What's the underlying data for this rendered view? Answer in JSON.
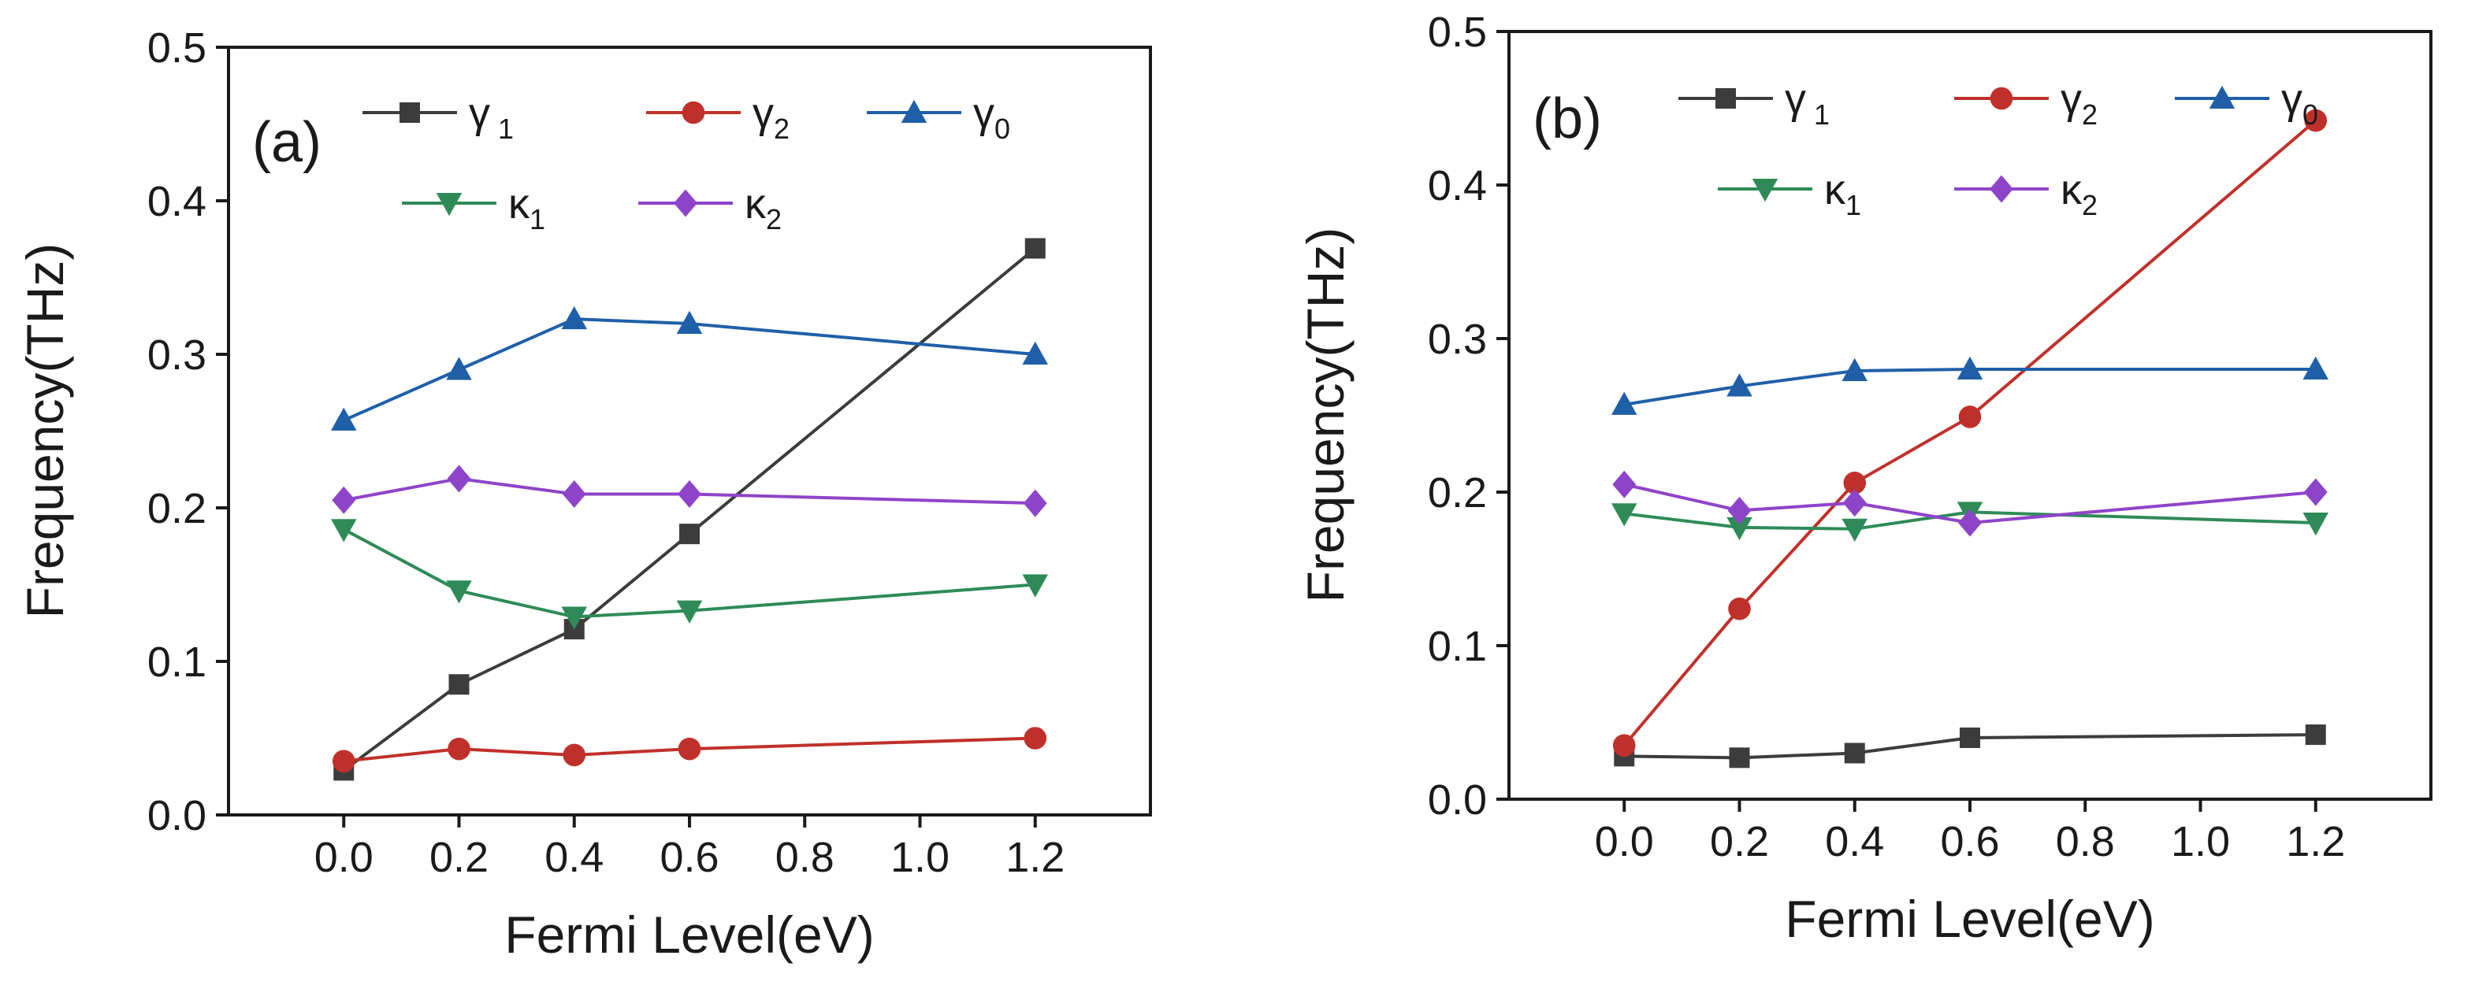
{
  "chart_data": [
    {
      "type": "line",
      "panel_label": "(a)",
      "xlabel": "Fermi Level(eV)",
      "ylabel": "Frequency(THz)",
      "x": [
        0.0,
        0.2,
        0.4,
        0.6,
        1.2
      ],
      "xlim": [
        -0.2,
        1.4
      ],
      "ylim": [
        0.0,
        0.5
      ],
      "xticks": [
        "0.0",
        "0.2",
        "0.4",
        "0.6",
        "0.8",
        "1.0",
        "1.2"
      ],
      "yticks": [
        "0.0",
        "0.1",
        "0.2",
        "0.3",
        "0.4",
        "0.5"
      ],
      "legend_position": "top",
      "series": [
        {
          "name": "γ 1",
          "symbol": "γ",
          "sub": " 1",
          "marker": "square",
          "color": "#3c3c3c",
          "values": [
            0.029,
            0.085,
            0.121,
            0.183,
            0.369
          ]
        },
        {
          "name": "γ2",
          "symbol": "γ",
          "sub": "2",
          "marker": "circle",
          "color": "#c0302b",
          "values": [
            0.035,
            0.043,
            0.039,
            0.043,
            0.05
          ]
        },
        {
          "name": "γ0",
          "symbol": "γ",
          "sub": "0",
          "marker": "triangle-up",
          "color": "#1f5fa8",
          "values": [
            0.257,
            0.29,
            0.323,
            0.32,
            0.3
          ]
        },
        {
          "name": "κ1",
          "symbol": "κ",
          "sub": "1",
          "marker": "triangle-down",
          "color": "#2e8b57",
          "values": [
            0.186,
            0.146,
            0.129,
            0.133,
            0.15
          ]
        },
        {
          "name": "κ2",
          "symbol": "κ",
          "sub": "2",
          "marker": "diamond",
          "color": "#8e44c9",
          "values": [
            0.205,
            0.219,
            0.209,
            0.209,
            0.203
          ]
        }
      ]
    },
    {
      "type": "line",
      "panel_label": "(b)",
      "xlabel": "Fermi Level(eV)",
      "ylabel": "Frequency(THz)",
      "x": [
        0.0,
        0.2,
        0.4,
        0.6,
        1.2
      ],
      "xlim": [
        -0.2,
        1.4
      ],
      "ylim": [
        0.0,
        0.5
      ],
      "xticks": [
        "0.0",
        "0.2",
        "0.4",
        "0.6",
        "0.8",
        "1.0",
        "1.2"
      ],
      "yticks": [
        "0.0",
        "0.1",
        "0.2",
        "0.3",
        "0.4",
        "0.5"
      ],
      "legend_position": "top",
      "series": [
        {
          "name": "γ 1",
          "symbol": "γ",
          "sub": " 1",
          "marker": "square",
          "color": "#3c3c3c",
          "values": [
            0.028,
            0.027,
            0.03,
            0.04,
            0.042
          ]
        },
        {
          "name": "γ2",
          "symbol": "γ",
          "sub": "2",
          "marker": "circle",
          "color": "#c0302b",
          "values": [
            0.035,
            0.124,
            0.206,
            0.249,
            0.442
          ]
        },
        {
          "name": "γ0",
          "symbol": "γ",
          "sub": "0",
          "marker": "triangle-up",
          "color": "#1f5fa8",
          "values": [
            0.257,
            0.269,
            0.279,
            0.28,
            0.28
          ]
        },
        {
          "name": "κ1",
          "symbol": "κ",
          "sub": "1",
          "marker": "triangle-down",
          "color": "#2e8b57",
          "values": [
            0.186,
            0.177,
            0.176,
            0.187,
            0.18
          ]
        },
        {
          "name": "κ2",
          "symbol": "κ",
          "sub": "2",
          "marker": "diamond",
          "color": "#8e44c9",
          "values": [
            0.205,
            0.188,
            0.193,
            0.18,
            0.2
          ]
        }
      ]
    }
  ]
}
